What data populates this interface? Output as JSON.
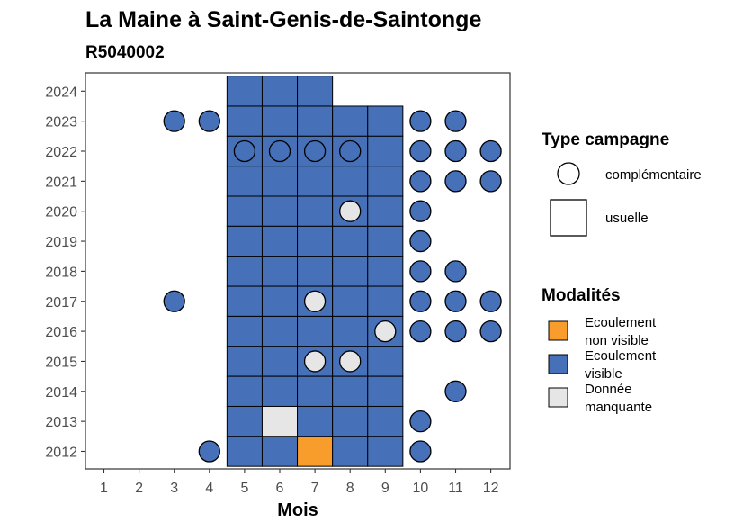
{
  "chart_data": {
    "type": "heatmap",
    "title": "La Maine à Saint-Genis-de-Saintonge",
    "subtitle": "R5040002",
    "xlabel": "Mois",
    "ylabel": "",
    "x_ticks": [
      1,
      2,
      3,
      4,
      5,
      6,
      7,
      8,
      9,
      10,
      11,
      12
    ],
    "y_ticks": [
      2012,
      2013,
      2014,
      2015,
      2016,
      2017,
      2018,
      2019,
      2020,
      2021,
      2022,
      2023,
      2024
    ],
    "legend_shape": {
      "title": "Type campagne",
      "items": [
        {
          "key": "complementaire",
          "label": "complémentaire",
          "shape": "circle"
        },
        {
          "key": "usuelle",
          "label": "usuelle",
          "shape": "square"
        }
      ]
    },
    "legend_fill": {
      "title": "Modalités",
      "items": [
        {
          "key": "ecoulement_non_visible",
          "label_lines": [
            "Ecoulement",
            "non visible"
          ],
          "color": "#F89C2C"
        },
        {
          "key": "ecoulement_visible",
          "label_lines": [
            "Ecoulement",
            "visible"
          ],
          "color": "#4671B8"
        },
        {
          "key": "donnee_manquante",
          "label_lines": [
            "Donnée",
            "manquante"
          ],
          "color": "#E6E6E6"
        }
      ]
    },
    "observations": [
      {
        "year": 2024,
        "month": 5,
        "type": "usuelle",
        "modalite": "ecoulement_visible"
      },
      {
        "year": 2024,
        "month": 6,
        "type": "usuelle",
        "modalite": "ecoulement_visible"
      },
      {
        "year": 2024,
        "month": 7,
        "type": "usuelle",
        "modalite": "ecoulement_visible"
      },
      {
        "year": 2023,
        "month": 3,
        "type": "complementaire",
        "modalite": "ecoulement_visible"
      },
      {
        "year": 2023,
        "month": 4,
        "type": "complementaire",
        "modalite": "ecoulement_visible"
      },
      {
        "year": 2023,
        "month": 5,
        "type": "usuelle",
        "modalite": "ecoulement_visible"
      },
      {
        "year": 2023,
        "month": 6,
        "type": "usuelle",
        "modalite": "ecoulement_visible"
      },
      {
        "year": 2023,
        "month": 7,
        "type": "usuelle",
        "modalite": "ecoulement_visible"
      },
      {
        "year": 2023,
        "month": 8,
        "type": "usuelle",
        "modalite": "ecoulement_visible"
      },
      {
        "year": 2023,
        "month": 9,
        "type": "usuelle",
        "modalite": "ecoulement_visible"
      },
      {
        "year": 2023,
        "month": 10,
        "type": "complementaire",
        "modalite": "ecoulement_visible"
      },
      {
        "year": 2023,
        "month": 11,
        "type": "complementaire",
        "modalite": "ecoulement_visible"
      },
      {
        "year": 2022,
        "month": 5,
        "type": "usuelle",
        "modalite": "ecoulement_visible"
      },
      {
        "year": 2022,
        "month": 6,
        "type": "usuelle",
        "modalite": "ecoulement_visible"
      },
      {
        "year": 2022,
        "month": 7,
        "type": "usuelle",
        "modalite": "ecoulement_visible"
      },
      {
        "year": 2022,
        "month": 8,
        "type": "usuelle",
        "modalite": "ecoulement_visible"
      },
      {
        "year": 2022,
        "month": 9,
        "type": "usuelle",
        "modalite": "ecoulement_visible"
      },
      {
        "year": 2022,
        "month": 5,
        "type": "complementaire",
        "modalite": "ecoulement_visible"
      },
      {
        "year": 2022,
        "month": 6,
        "type": "complementaire",
        "modalite": "ecoulement_visible"
      },
      {
        "year": 2022,
        "month": 7,
        "type": "complementaire",
        "modalite": "ecoulement_visible"
      },
      {
        "year": 2022,
        "month": 8,
        "type": "complementaire",
        "modalite": "ecoulement_visible"
      },
      {
        "year": 2022,
        "month": 10,
        "type": "complementaire",
        "modalite": "ecoulement_visible"
      },
      {
        "year": 2022,
        "month": 11,
        "type": "complementaire",
        "modalite": "ecoulement_visible"
      },
      {
        "year": 2022,
        "month": 12,
        "type": "complementaire",
        "modalite": "ecoulement_visible"
      },
      {
        "year": 2021,
        "month": 5,
        "type": "usuelle",
        "modalite": "ecoulement_visible"
      },
      {
        "year": 2021,
        "month": 6,
        "type": "usuelle",
        "modalite": "ecoulement_visible"
      },
      {
        "year": 2021,
        "month": 7,
        "type": "usuelle",
        "modalite": "ecoulement_visible"
      },
      {
        "year": 2021,
        "month": 8,
        "type": "usuelle",
        "modalite": "ecoulement_visible"
      },
      {
        "year": 2021,
        "month": 9,
        "type": "usuelle",
        "modalite": "ecoulement_visible"
      },
      {
        "year": 2021,
        "month": 10,
        "type": "complementaire",
        "modalite": "ecoulement_visible"
      },
      {
        "year": 2021,
        "month": 11,
        "type": "complementaire",
        "modalite": "ecoulement_visible"
      },
      {
        "year": 2021,
        "month": 12,
        "type": "complementaire",
        "modalite": "ecoulement_visible"
      },
      {
        "year": 2020,
        "month": 5,
        "type": "usuelle",
        "modalite": "ecoulement_visible"
      },
      {
        "year": 2020,
        "month": 6,
        "type": "usuelle",
        "modalite": "ecoulement_visible"
      },
      {
        "year": 2020,
        "month": 7,
        "type": "usuelle",
        "modalite": "ecoulement_visible"
      },
      {
        "year": 2020,
        "month": 8,
        "type": "usuelle",
        "modalite": "ecoulement_visible"
      },
      {
        "year": 2020,
        "month": 9,
        "type": "usuelle",
        "modalite": "ecoulement_visible"
      },
      {
        "year": 2020,
        "month": 8,
        "type": "complementaire",
        "modalite": "donnee_manquante"
      },
      {
        "year": 2020,
        "month": 10,
        "type": "complementaire",
        "modalite": "ecoulement_visible"
      },
      {
        "year": 2019,
        "month": 5,
        "type": "usuelle",
        "modalite": "ecoulement_visible"
      },
      {
        "year": 2019,
        "month": 6,
        "type": "usuelle",
        "modalite": "ecoulement_visible"
      },
      {
        "year": 2019,
        "month": 7,
        "type": "usuelle",
        "modalite": "ecoulement_visible"
      },
      {
        "year": 2019,
        "month": 8,
        "type": "usuelle",
        "modalite": "ecoulement_visible"
      },
      {
        "year": 2019,
        "month": 9,
        "type": "usuelle",
        "modalite": "ecoulement_visible"
      },
      {
        "year": 2019,
        "month": 10,
        "type": "complementaire",
        "modalite": "ecoulement_visible"
      },
      {
        "year": 2018,
        "month": 5,
        "type": "usuelle",
        "modalite": "ecoulement_visible"
      },
      {
        "year": 2018,
        "month": 6,
        "type": "usuelle",
        "modalite": "ecoulement_visible"
      },
      {
        "year": 2018,
        "month": 7,
        "type": "usuelle",
        "modalite": "ecoulement_visible"
      },
      {
        "year": 2018,
        "month": 8,
        "type": "usuelle",
        "modalite": "ecoulement_visible"
      },
      {
        "year": 2018,
        "month": 9,
        "type": "usuelle",
        "modalite": "ecoulement_visible"
      },
      {
        "year": 2018,
        "month": 10,
        "type": "complementaire",
        "modalite": "ecoulement_visible"
      },
      {
        "year": 2018,
        "month": 11,
        "type": "complementaire",
        "modalite": "ecoulement_visible"
      },
      {
        "year": 2017,
        "month": 3,
        "type": "complementaire",
        "modalite": "ecoulement_visible"
      },
      {
        "year": 2017,
        "month": 5,
        "type": "usuelle",
        "modalite": "ecoulement_visible"
      },
      {
        "year": 2017,
        "month": 6,
        "type": "usuelle",
        "modalite": "ecoulement_visible"
      },
      {
        "year": 2017,
        "month": 7,
        "type": "usuelle",
        "modalite": "ecoulement_visible"
      },
      {
        "year": 2017,
        "month": 8,
        "type": "usuelle",
        "modalite": "ecoulement_visible"
      },
      {
        "year": 2017,
        "month": 9,
        "type": "usuelle",
        "modalite": "ecoulement_visible"
      },
      {
        "year": 2017,
        "month": 7,
        "type": "complementaire",
        "modalite": "donnee_manquante"
      },
      {
        "year": 2017,
        "month": 10,
        "type": "complementaire",
        "modalite": "ecoulement_visible"
      },
      {
        "year": 2017,
        "month": 11,
        "type": "complementaire",
        "modalite": "ecoulement_visible"
      },
      {
        "year": 2017,
        "month": 12,
        "type": "complementaire",
        "modalite": "ecoulement_visible"
      },
      {
        "year": 2016,
        "month": 5,
        "type": "usuelle",
        "modalite": "ecoulement_visible"
      },
      {
        "year": 2016,
        "month": 6,
        "type": "usuelle",
        "modalite": "ecoulement_visible"
      },
      {
        "year": 2016,
        "month": 7,
        "type": "usuelle",
        "modalite": "ecoulement_visible"
      },
      {
        "year": 2016,
        "month": 8,
        "type": "usuelle",
        "modalite": "ecoulement_visible"
      },
      {
        "year": 2016,
        "month": 9,
        "type": "usuelle",
        "modalite": "ecoulement_visible"
      },
      {
        "year": 2016,
        "month": 9,
        "type": "complementaire",
        "modalite": "donnee_manquante"
      },
      {
        "year": 2016,
        "month": 10,
        "type": "complementaire",
        "modalite": "ecoulement_visible"
      },
      {
        "year": 2016,
        "month": 11,
        "type": "complementaire",
        "modalite": "ecoulement_visible"
      },
      {
        "year": 2016,
        "month": 12,
        "type": "complementaire",
        "modalite": "ecoulement_visible"
      },
      {
        "year": 2015,
        "month": 5,
        "type": "usuelle",
        "modalite": "ecoulement_visible"
      },
      {
        "year": 2015,
        "month": 6,
        "type": "usuelle",
        "modalite": "ecoulement_visible"
      },
      {
        "year": 2015,
        "month": 7,
        "type": "usuelle",
        "modalite": "ecoulement_visible"
      },
      {
        "year": 2015,
        "month": 8,
        "type": "usuelle",
        "modalite": "ecoulement_visible"
      },
      {
        "year": 2015,
        "month": 9,
        "type": "usuelle",
        "modalite": "ecoulement_visible"
      },
      {
        "year": 2015,
        "month": 7,
        "type": "complementaire",
        "modalite": "donnee_manquante"
      },
      {
        "year": 2015,
        "month": 8,
        "type": "complementaire",
        "modalite": "donnee_manquante"
      },
      {
        "year": 2014,
        "month": 5,
        "type": "usuelle",
        "modalite": "ecoulement_visible"
      },
      {
        "year": 2014,
        "month": 6,
        "type": "usuelle",
        "modalite": "ecoulement_visible"
      },
      {
        "year": 2014,
        "month": 7,
        "type": "usuelle",
        "modalite": "ecoulement_visible"
      },
      {
        "year": 2014,
        "month": 8,
        "type": "usuelle",
        "modalite": "ecoulement_visible"
      },
      {
        "year": 2014,
        "month": 9,
        "type": "usuelle",
        "modalite": "ecoulement_visible"
      },
      {
        "year": 2014,
        "month": 11,
        "type": "complementaire",
        "modalite": "ecoulement_visible"
      },
      {
        "year": 2013,
        "month": 5,
        "type": "usuelle",
        "modalite": "ecoulement_visible"
      },
      {
        "year": 2013,
        "month": 6,
        "type": "usuelle",
        "modalite": "donnee_manquante"
      },
      {
        "year": 2013,
        "month": 7,
        "type": "usuelle",
        "modalite": "ecoulement_visible"
      },
      {
        "year": 2013,
        "month": 8,
        "type": "usuelle",
        "modalite": "ecoulement_visible"
      },
      {
        "year": 2013,
        "month": 9,
        "type": "usuelle",
        "modalite": "ecoulement_visible"
      },
      {
        "year": 2013,
        "month": 10,
        "type": "complementaire",
        "modalite": "ecoulement_visible"
      },
      {
        "year": 2012,
        "month": 4,
        "type": "complementaire",
        "modalite": "ecoulement_visible"
      },
      {
        "year": 2012,
        "month": 5,
        "type": "usuelle",
        "modalite": "ecoulement_visible"
      },
      {
        "year": 2012,
        "month": 6,
        "type": "usuelle",
        "modalite": "ecoulement_visible"
      },
      {
        "year": 2012,
        "month": 7,
        "type": "usuelle",
        "modalite": "ecoulement_non_visible"
      },
      {
        "year": 2012,
        "month": 8,
        "type": "usuelle",
        "modalite": "ecoulement_visible"
      },
      {
        "year": 2012,
        "month": 9,
        "type": "usuelle",
        "modalite": "ecoulement_visible"
      },
      {
        "year": 2012,
        "month": 10,
        "type": "complementaire",
        "modalite": "ecoulement_visible"
      }
    ]
  }
}
